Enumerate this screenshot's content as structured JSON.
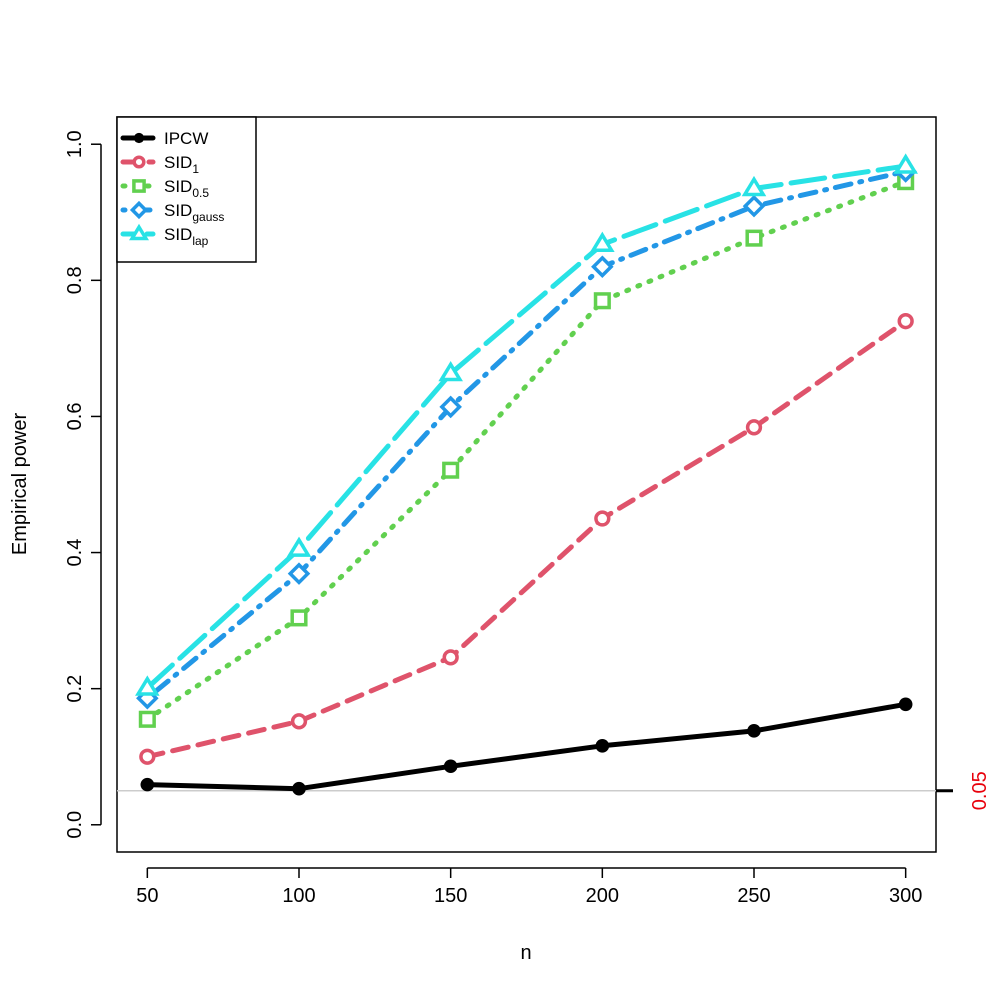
{
  "chart_data": {
    "type": "line",
    "title": "",
    "xlabel": "n",
    "ylabel": "Empirical power",
    "x": [
      50,
      100,
      150,
      200,
      250,
      300
    ],
    "xlim": [
      40,
      310
    ],
    "ylim": [
      -0.04,
      1.04
    ],
    "x_ticks": [
      50,
      100,
      150,
      200,
      250,
      300
    ],
    "y_ticks": [
      0.0,
      0.2,
      0.4,
      0.6,
      0.8,
      1.0
    ],
    "x_tick_labels": [
      "50",
      "100",
      "150",
      "200",
      "250",
      "300"
    ],
    "y_tick_labels": [
      "0.0",
      "0.2",
      "0.4",
      "0.6",
      "0.8",
      "1.0"
    ],
    "grid": false,
    "legend_position": "top-left",
    "reference_line": {
      "y": 0.05,
      "label": "0.05",
      "color": "#cccccc",
      "label_color": "#e8000b"
    },
    "series": [
      {
        "base": "IPCW",
        "sub": "",
        "color": "#000000",
        "dash": "solid",
        "marker": "filled-circle",
        "values": [
          0.059,
          0.053,
          0.086,
          0.116,
          0.138,
          0.177
        ]
      },
      {
        "base": "SID",
        "sub": "1",
        "color": "#df536b",
        "dash": "dashed",
        "marker": "open-circle",
        "values": [
          0.1,
          0.152,
          0.246,
          0.45,
          0.584,
          0.74
        ]
      },
      {
        "base": "SID",
        "sub": "0.5",
        "color": "#61d04f",
        "dash": "dotted",
        "marker": "open-square",
        "values": [
          0.155,
          0.304,
          0.521,
          0.77,
          0.862,
          0.945
        ]
      },
      {
        "base": "SID",
        "sub": "gauss",
        "color": "#2297e6",
        "dash": "dotdash",
        "marker": "open-diamond",
        "values": [
          0.186,
          0.369,
          0.614,
          0.82,
          0.909,
          0.96
        ]
      },
      {
        "base": "SID",
        "sub": "lap",
        "color": "#28e2e5",
        "dash": "longdash",
        "marker": "open-triangle",
        "values": [
          0.201,
          0.405,
          0.663,
          0.853,
          0.935,
          0.968
        ]
      }
    ]
  }
}
